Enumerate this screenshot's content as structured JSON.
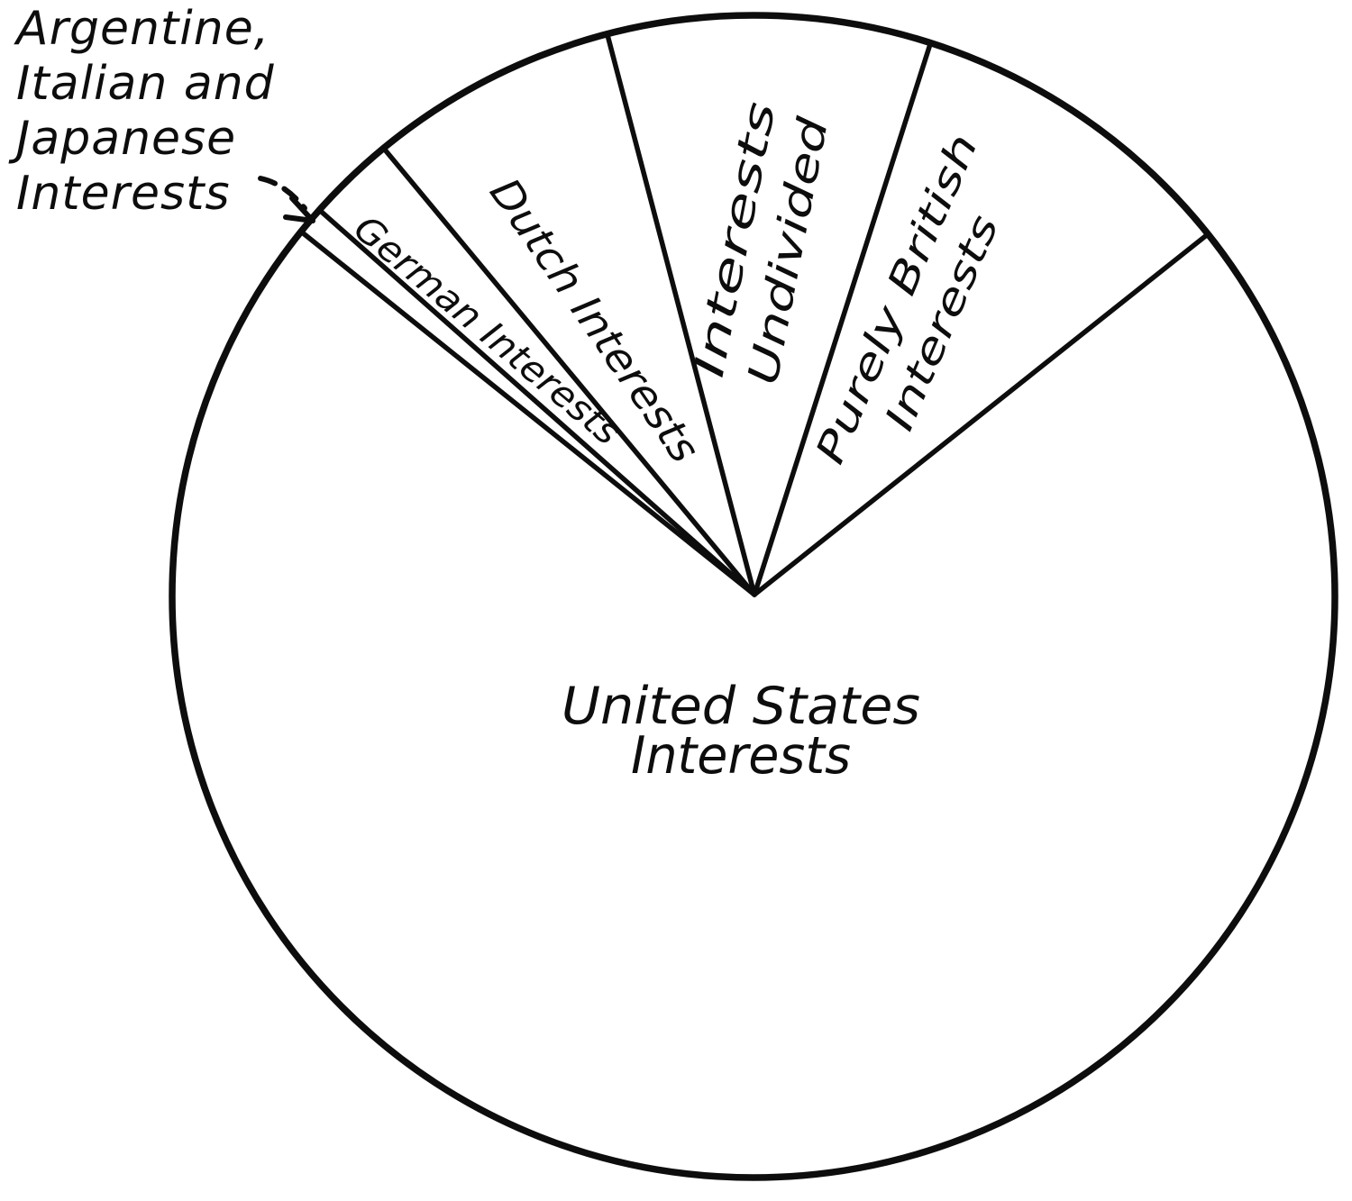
{
  "figure": {
    "background": "#ffffff",
    "ink": "#0d0d0d",
    "style": "hand-drawn vintage pie chart, black ink on white, no fills, no numeric labels"
  },
  "chart_data": {
    "type": "pie",
    "title": "",
    "legend_position": "none",
    "labels_on_slices": true,
    "values_shown_as_numbers": false,
    "geometry_note": "angles in degrees CCW from positive x-axis; percentages estimated from measured slice angles",
    "slices": [
      {
        "id": "united-states",
        "label": "United States Interests",
        "label_lines": [
          "United States",
          "Interests"
        ],
        "pct": 71.4,
        "angle_deg": 257.2,
        "start_angle_deg": -218.7,
        "end_angle_deg": 38.5
      },
      {
        "id": "purely-british",
        "label": "Purely British Interests",
        "label_lines": [
          "Purely British",
          "Interests"
        ],
        "pct": 9.4,
        "angle_deg": 33.8,
        "start_angle_deg": 38.5,
        "end_angle_deg": 72.3
      },
      {
        "id": "interests-undivided",
        "label": "Interests Undivided",
        "label_lines": [
          "Interests",
          "Undivided"
        ],
        "pct": 9.0,
        "angle_deg": 32.4,
        "start_angle_deg": 72.3,
        "end_angle_deg": 104.7
      },
      {
        "id": "dutch",
        "label": "Dutch Interests",
        "label_lines": [
          "Dutch Interests"
        ],
        "pct": 7.0,
        "angle_deg": 25.0,
        "start_angle_deg": 104.7,
        "end_angle_deg": 129.7
      },
      {
        "id": "german",
        "label": "German Interests",
        "label_lines": [
          "German Interests"
        ],
        "pct": 2.4,
        "angle_deg": 8.8,
        "start_angle_deg": 129.7,
        "end_angle_deg": 138.5
      },
      {
        "id": "argentine-italian-japanese",
        "label": "Argentine, Italian and Japanese Interests",
        "label_lines": [],
        "labeled_via": "external callout with dashed arrow",
        "pct": 0.8,
        "angle_deg": 2.8,
        "start_angle_deg": 138.5,
        "end_angle_deg": 141.3
      }
    ],
    "callout": {
      "text": "Argentine, Italian and Japanese Interests",
      "lines": [
        "Argentine,",
        "Italian and",
        "Japanese",
        "Interests"
      ],
      "arrow_style": "dashed curved leader with open V arrowhead pointing to thin sliver at upper-left rim"
    }
  }
}
